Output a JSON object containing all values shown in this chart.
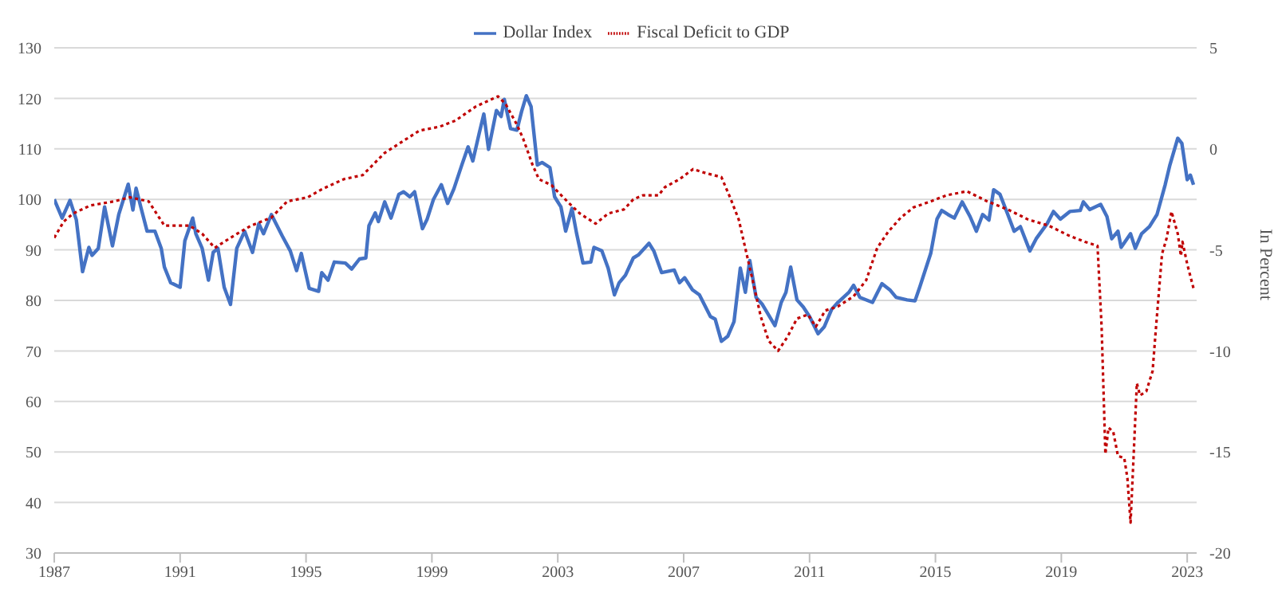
{
  "chart_data": {
    "type": "line",
    "y2label": "In Percent",
    "xlim": [
      1987,
      2023.3
    ],
    "xticks": [
      1987,
      1991,
      1995,
      1999,
      2003,
      2007,
      2011,
      2015,
      2019,
      2023
    ],
    "ylim": [
      30,
      130
    ],
    "yticks": [
      30,
      40,
      50,
      60,
      70,
      80,
      90,
      100,
      110,
      120,
      130
    ],
    "y2lim": [
      -20,
      5
    ],
    "y2ticks": [
      -20,
      -15,
      -10,
      -5,
      0,
      5
    ],
    "grid": "y",
    "legend": "top",
    "marker": "none",
    "series": [
      {
        "name": "Dollar Index",
        "color": "#4472c4",
        "line_style": "solid",
        "x": [
          1987.0,
          1987.25,
          1987.5,
          1987.7,
          1987.9,
          1988.1,
          1988.2,
          1988.4,
          1988.6,
          1988.85,
          1989.05,
          1989.35,
          1989.5,
          1989.6,
          1989.75,
          1989.95,
          1990.2,
          1990.4,
          1990.5,
          1990.7,
          1991.0,
          1991.15,
          1991.4,
          1991.5,
          1991.7,
          1991.9,
          1992.05,
          1992.2,
          1992.4,
          1992.6,
          1992.8,
          1993.05,
          1993.3,
          1993.5,
          1993.65,
          1993.9,
          1994.25,
          1994.5,
          1994.7,
          1994.85,
          1995.1,
          1995.4,
          1995.5,
          1995.7,
          1995.9,
          1996.25,
          1996.45,
          1996.7,
          1996.9,
          1997.0,
          1997.2,
          1997.3,
          1997.5,
          1997.7,
          1997.95,
          1998.1,
          1998.3,
          1998.45,
          1998.7,
          1998.85,
          1999.05,
          1999.3,
          1999.5,
          1999.7,
          1999.95,
          2000.15,
          2000.3,
          2000.5,
          2000.65,
          2000.8,
          2001.05,
          2001.2,
          2001.3,
          2001.5,
          2001.7,
          2001.85,
          2002.0,
          2002.15,
          2002.35,
          2002.5,
          2002.75,
          2002.9,
          2003.1,
          2003.25,
          2003.45,
          2003.6,
          2003.8,
          2004.05,
          2004.15,
          2004.4,
          2004.6,
          2004.8,
          2004.95,
          2005.15,
          2005.4,
          2005.56,
          2005.9,
          2006.05,
          2006.3,
          2006.7,
          2006.87,
          2007.03,
          2007.28,
          2007.5,
          2007.85,
          2008.0,
          2008.2,
          2008.4,
          2008.6,
          2008.8,
          2008.96,
          2009.1,
          2009.3,
          2009.5,
          2009.9,
          2010.1,
          2010.25,
          2010.4,
          2010.6,
          2010.8,
          2011.0,
          2011.27,
          2011.47,
          2011.7,
          2011.9,
          2012.25,
          2012.4,
          2012.6,
          2013.0,
          2013.3,
          2013.55,
          2013.75,
          2014.1,
          2014.35,
          2014.5,
          2014.85,
          2015.05,
          2015.2,
          2015.4,
          2015.6,
          2015.85,
          2016.1,
          2016.3,
          2016.5,
          2016.7,
          2016.85,
          2017.05,
          2017.3,
          2017.5,
          2017.7,
          2018.0,
          2018.2,
          2018.55,
          2018.75,
          2018.97,
          2019.27,
          2019.6,
          2019.7,
          2019.9,
          2020.25,
          2020.45,
          2020.6,
          2020.8,
          2020.9,
          2021.2,
          2021.35,
          2021.55,
          2021.8,
          2022.04,
          2022.3,
          2022.45,
          2022.7,
          2022.83,
          2023.0,
          2023.1,
          2023.2
        ],
        "values": [
          100,
          96.3,
          99.8,
          96,
          85.7,
          90.5,
          88.9,
          90.3,
          98.5,
          90.8,
          97,
          103,
          97.9,
          102.2,
          98.5,
          93.7,
          93.7,
          90.3,
          86.6,
          83.5,
          82.6,
          91.8,
          96.3,
          93.2,
          90.3,
          84,
          89.5,
          90.3,
          82.6,
          79.2,
          90.3,
          93.7,
          89.5,
          95.2,
          93.2,
          97,
          92.7,
          89.8,
          85.9,
          89.3,
          82.4,
          81.8,
          85.5,
          84,
          87.6,
          87.4,
          86.2,
          88.2,
          88.4,
          94.8,
          97.3,
          95.6,
          99.5,
          96.3,
          101,
          101.5,
          100.5,
          101.5,
          94.2,
          96.1,
          100,
          102.9,
          99.2,
          102.1,
          106.8,
          110.4,
          107.6,
          113,
          116.9,
          109.9,
          117.6,
          116.4,
          119.8,
          114,
          113.7,
          117.4,
          120.5,
          118.4,
          106.8,
          107.3,
          106.3,
          100.5,
          98.5,
          93.7,
          98.2,
          93.2,
          87.4,
          87.6,
          90.5,
          89.8,
          86.4,
          81.1,
          83.5,
          85,
          88.4,
          89,
          91.3,
          89.8,
          85.5,
          86,
          83.5,
          84.5,
          82.1,
          81.1,
          76.8,
          76.3,
          71.9,
          72.9,
          75.8,
          86.4,
          81.6,
          87.9,
          80.6,
          79.2,
          75,
          79.6,
          81.6,
          86.6,
          80.1,
          78.7,
          76.8,
          73.4,
          74.8,
          78.2,
          79.6,
          81.6,
          83,
          80.6,
          79.6,
          83.3,
          82.1,
          80.6,
          80.1,
          79.9,
          82.6,
          89.3,
          96.1,
          97.8,
          97,
          96.3,
          99.5,
          96.6,
          93.7,
          97,
          95.9,
          101.9,
          101,
          97,
          93.7,
          94.6,
          89.8,
          92.2,
          95.2,
          97.6,
          96.1,
          97.6,
          97.8,
          99.5,
          98,
          99,
          96.6,
          92.2,
          93.7,
          90.5,
          93.2,
          90.3,
          93.2,
          94.6,
          97,
          102.9,
          106.8,
          112.1,
          111.1,
          103.9,
          104.8,
          102.9
        ]
      },
      {
        "name": "Fiscal Deficit  to  GDP",
        "color": "#c00000",
        "line_style": "dotted",
        "axis": "y2",
        "x": [
          1987.0,
          1987.3,
          1987.6,
          1988.15,
          1988.9,
          1989.4,
          1990.0,
          1990.5,
          1991.0,
          1991.3,
          1991.7,
          1992.1,
          1992.6,
          1993.25,
          1993.9,
          1994.4,
          1995.05,
          1995.5,
          1996.2,
          1996.8,
          1997.5,
          1998.0,
          1998.6,
          1999.25,
          1999.75,
          2000.4,
          2001.1,
          2001.35,
          2001.7,
          2001.9,
          2002.2,
          2002.4,
          2002.8,
          2003.3,
          2003.7,
          2004.2,
          2004.6,
          2005.1,
          2005.4,
          2005.7,
          2006.2,
          2006.4,
          2006.87,
          2007.3,
          2007.7,
          2008.2,
          2008.5,
          2008.75,
          2009.0,
          2009.25,
          2009.45,
          2009.7,
          2010.0,
          2010.3,
          2010.6,
          2010.95,
          2011.2,
          2011.5,
          2011.9,
          2012.4,
          2012.8,
          2013.15,
          2013.5,
          2013.9,
          2014.3,
          2014.85,
          2015.35,
          2016.0,
          2016.65,
          2017.3,
          2017.95,
          2018.6,
          2019.25,
          2019.75,
          2020.15,
          2020.28,
          2020.4,
          2020.5,
          2020.65,
          2020.8,
          2021.0,
          2021.1,
          2021.2,
          2021.3,
          2021.4,
          2021.5,
          2021.7,
          2021.9,
          2022.0,
          2022.2,
          2022.35,
          2022.5,
          2022.7,
          2022.8,
          2022.85,
          2023.0,
          2023.2
        ],
        "values": [
          -4.4,
          -3.6,
          -3.2,
          -2.8,
          -2.6,
          -2.4,
          -2.6,
          -3.8,
          -3.8,
          -3.8,
          -4.2,
          -4.9,
          -4.4,
          -3.8,
          -3.4,
          -2.6,
          -2.4,
          -2,
          -1.5,
          -1.3,
          -0.2,
          0.3,
          0.9,
          1.1,
          1.4,
          2.1,
          2.6,
          2.2,
          1.2,
          0.5,
          -0.8,
          -1.5,
          -1.8,
          -2.6,
          -3.2,
          -3.7,
          -3.2,
          -3,
          -2.5,
          -2.3,
          -2.3,
          -1.9,
          -1.5,
          -1,
          -1.2,
          -1.4,
          -2.5,
          -3.5,
          -5.2,
          -6.9,
          -8.3,
          -9.5,
          -10,
          -9.3,
          -8.4,
          -8.2,
          -8.8,
          -8,
          -7.8,
          -7.3,
          -6.5,
          -4.9,
          -4.1,
          -3.4,
          -2.9,
          -2.6,
          -2.3,
          -2.1,
          -2.6,
          -3,
          -3.5,
          -3.8,
          -4.3,
          -4.6,
          -4.8,
          -8.8,
          -15.1,
          -13.8,
          -14,
          -15.2,
          -15.3,
          -16.3,
          -18.5,
          -15.1,
          -11.6,
          -12.2,
          -12,
          -11,
          -9,
          -5.2,
          -4.4,
          -3.1,
          -4.2,
          -5.3,
          -4.6,
          -5.7,
          -6.9
        ]
      }
    ]
  }
}
